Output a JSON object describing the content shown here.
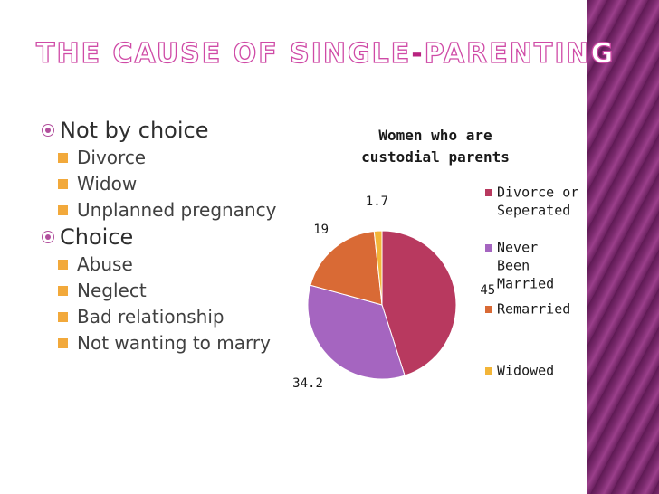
{
  "slide": {
    "title_part1": "THE CAUSE OF SINGLE",
    "title_dash": "-",
    "title_part2": "PARENTING"
  },
  "bullets": [
    {
      "label": "Not by choice",
      "items": [
        "Divorce",
        "Widow",
        "Unplanned pregnancy"
      ]
    },
    {
      "label": "Choice",
      "items": [
        "Abuse",
        "Neglect",
        "Bad relationship",
        "Not wanting to marry"
      ]
    }
  ],
  "chart_data": {
    "type": "pie",
    "title": "Women who are custodial parents",
    "title_lines": [
      "Women who are",
      "custodial parents"
    ],
    "categories": [
      "Divorce or Seperated",
      "Never Been Married",
      "Remarried",
      "Widowed"
    ],
    "values": [
      45,
      34.2,
      19,
      1.7
    ],
    "data_labels": [
      "45",
      "34.2",
      "19",
      "1.7"
    ],
    "legend": [
      {
        "lines": [
          "Divorce or",
          "Seperated"
        ]
      },
      {
        "lines": [
          "Never",
          "Been",
          "Married"
        ]
      },
      {
        "lines": [
          "Remarried"
        ]
      },
      {
        "lines": [
          "Widowed"
        ]
      }
    ],
    "legend_position": "right",
    "colors": [
      "#b8395f",
      "#a565c0",
      "#d96a35",
      "#f3b538"
    ]
  },
  "colors": {
    "accent": "#b8237f",
    "band": "#7a2a6d",
    "bullet_square": "#f2a93b"
  }
}
